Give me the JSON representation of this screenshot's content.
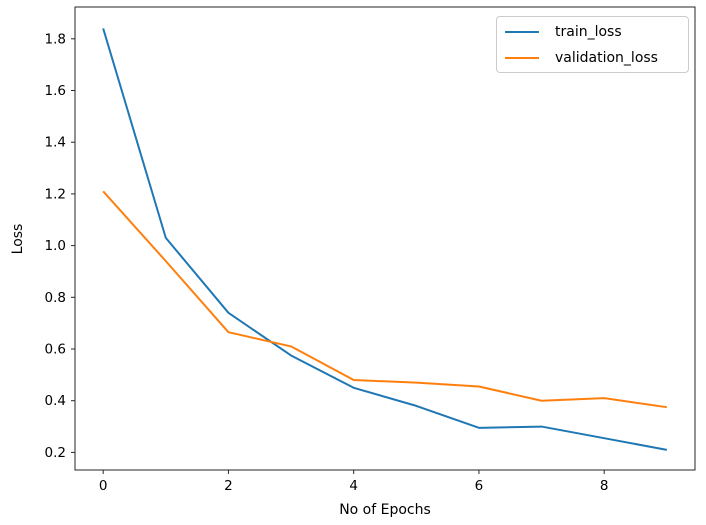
{
  "chart_data": {
    "type": "line",
    "title": "",
    "xlabel": "No of Epochs",
    "ylabel": "Loss",
    "x": [
      0,
      1,
      2,
      3,
      4,
      5,
      6,
      7,
      8,
      9
    ],
    "series": [
      {
        "name": "train_loss",
        "color": "#1f77b4",
        "values": [
          1.84,
          1.03,
          0.74,
          0.575,
          0.45,
          0.38,
          0.295,
          0.3,
          0.255,
          0.21
        ]
      },
      {
        "name": "validation_loss",
        "color": "#ff7f0e",
        "values": [
          1.21,
          0.94,
          0.665,
          0.61,
          0.48,
          0.47,
          0.455,
          0.4,
          0.41,
          0.375
        ]
      }
    ],
    "xlim": [
      -0.45,
      9.45
    ],
    "ylim": [
      0.132,
      1.923
    ],
    "x_ticks": [
      0,
      2,
      4,
      6,
      8
    ],
    "y_ticks": [
      0.2,
      0.4,
      0.6,
      0.8,
      1.0,
      1.2,
      1.4,
      1.6,
      1.8
    ],
    "grid": false,
    "legend_position": "upper right",
    "axis_color": "#262626",
    "text_color": "#000000"
  }
}
